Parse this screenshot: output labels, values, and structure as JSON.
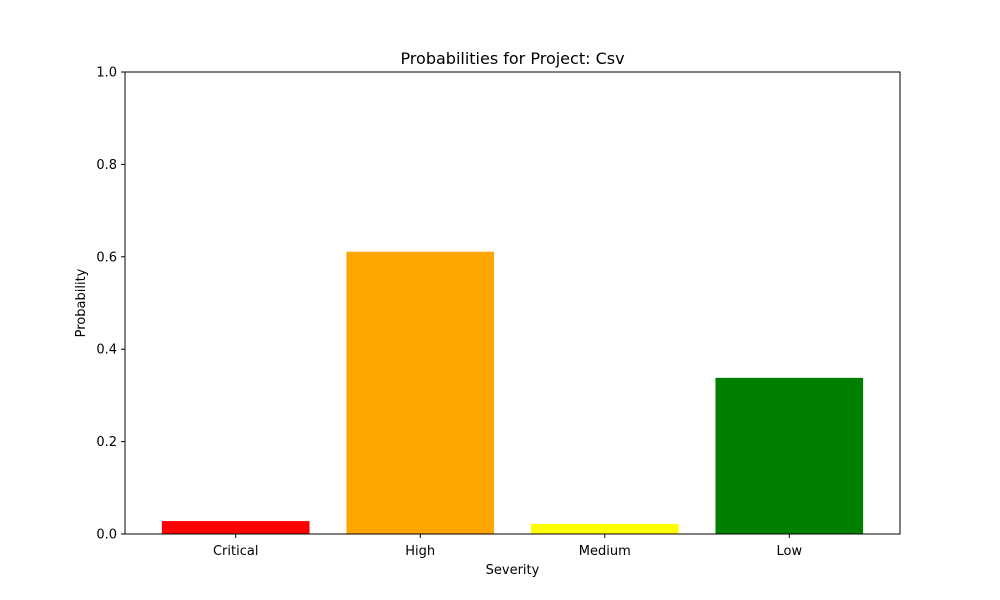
{
  "chart_data": {
    "type": "bar",
    "title": "Probabilities for Project: Csv",
    "xlabel": "Severity",
    "ylabel": "Probability",
    "categories": [
      "Critical",
      "High",
      "Medium",
      "Low"
    ],
    "values": [
      0.028,
      0.611,
      0.022,
      0.338
    ],
    "colors": [
      "#ff0000",
      "#ffa500",
      "#ffff00",
      "#008000"
    ],
    "ylim": [
      0,
      1.0
    ],
    "yticks": [
      0.0,
      0.2,
      0.4,
      0.6,
      0.8,
      1.0
    ],
    "ytick_labels": [
      "0.0",
      "0.2",
      "0.4",
      "0.6",
      "0.8",
      "1.0"
    ],
    "grid": false,
    "legend": "none"
  }
}
